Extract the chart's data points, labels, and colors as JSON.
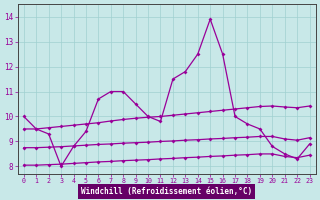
{
  "x": [
    0,
    1,
    2,
    3,
    4,
    5,
    6,
    7,
    8,
    9,
    10,
    11,
    12,
    13,
    14,
    15,
    16,
    17,
    18,
    19,
    20,
    21,
    22,
    23
  ],
  "main_line": [
    10.0,
    9.5,
    9.3,
    8.0,
    8.8,
    9.4,
    10.7,
    11.0,
    11.0,
    10.5,
    10.0,
    9.8,
    11.5,
    11.8,
    12.5,
    13.9,
    12.5,
    10.0,
    9.7,
    9.5,
    8.8,
    8.5,
    8.3,
    8.9
  ],
  "upper_line": [
    9.5,
    9.5,
    9.55,
    9.6,
    9.65,
    9.7,
    9.75,
    9.82,
    9.88,
    9.93,
    9.97,
    10.0,
    10.05,
    10.1,
    10.15,
    10.2,
    10.25,
    10.3,
    10.35,
    10.4,
    10.42,
    10.38,
    10.35,
    10.42
  ],
  "lower_line1": [
    8.75,
    8.75,
    8.77,
    8.79,
    8.82,
    8.85,
    8.88,
    8.9,
    8.93,
    8.95,
    8.97,
    9.0,
    9.02,
    9.05,
    9.07,
    9.1,
    9.12,
    9.15,
    9.17,
    9.2,
    9.2,
    9.1,
    9.05,
    9.15
  ],
  "lower_line2": [
    8.05,
    8.05,
    8.07,
    8.09,
    8.12,
    8.15,
    8.18,
    8.2,
    8.23,
    8.25,
    8.27,
    8.3,
    8.32,
    8.35,
    8.37,
    8.4,
    8.42,
    8.45,
    8.47,
    8.5,
    8.5,
    8.4,
    8.35,
    8.45
  ],
  "bg_color": "#c8e8e8",
  "line_color": "#990099",
  "grid_color": "#a0d0d0",
  "border_color": "#444444",
  "xlabel": "Windchill (Refroidissement éolien,°C)",
  "xlabel_bg": "#660066",
  "xlabel_fg": "#ffffff",
  "yticks": [
    8,
    9,
    10,
    11,
    12,
    13,
    14
  ],
  "xtick_labels": [
    "0",
    "1",
    "2",
    "3",
    "4",
    "5",
    "6",
    "7",
    "8",
    "9",
    "10",
    "11",
    "12",
    "13",
    "14",
    "15",
    "16",
    "17",
    "18",
    "19",
    "20",
    "21",
    "22",
    "23"
  ],
  "xticks": [
    0,
    1,
    2,
    3,
    4,
    5,
    6,
    7,
    8,
    9,
    10,
    11,
    12,
    13,
    14,
    15,
    16,
    17,
    18,
    19,
    20,
    21,
    22,
    23
  ],
  "ylim": [
    7.7,
    14.5
  ],
  "xlim": [
    -0.5,
    23.5
  ],
  "marker": "D",
  "markersize": 2.0,
  "linewidth": 0.9
}
